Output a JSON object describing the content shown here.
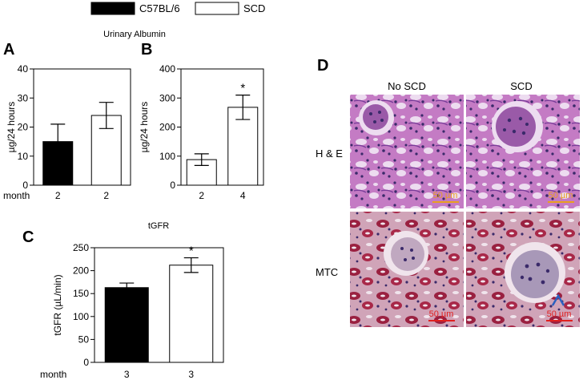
{
  "legend": {
    "items": [
      {
        "label": "C57BL/6",
        "color": "#000000"
      },
      {
        "label": "SCD",
        "color": "#ffffff"
      }
    ],
    "placement": "top"
  },
  "panels": {
    "A": "A",
    "B": "B",
    "C": "C",
    "D": "D"
  },
  "chart_data": [
    {
      "panel": "A",
      "type": "bar",
      "title": "Urinary Albumin",
      "ylabel": "µg/24 hours",
      "xlabel": "month",
      "categories": [
        "2",
        "2"
      ],
      "values": [
        15,
        24
      ],
      "errors": [
        6,
        4.5
      ],
      "fills": [
        "#000000",
        "#ffffff"
      ],
      "ylim": [
        0,
        40
      ],
      "yticks": [
        0,
        10,
        20,
        30,
        40
      ],
      "significance": [
        "",
        ""
      ],
      "grid": false
    },
    {
      "panel": "B",
      "type": "bar",
      "title": "",
      "ylabel": "µg/24 hours",
      "xlabel": "",
      "categories": [
        "2",
        "4"
      ],
      "values": [
        88,
        268
      ],
      "errors": [
        20,
        42
      ],
      "fills": [
        "#ffffff",
        "#ffffff"
      ],
      "ylim": [
        0,
        400
      ],
      "yticks": [
        0,
        100,
        200,
        300,
        400
      ],
      "significance": [
        "",
        "*"
      ],
      "grid": false
    },
    {
      "panel": "C",
      "type": "bar",
      "title": "tGFR",
      "ylabel": "tGFR (µL/min)",
      "xlabel": "month",
      "categories": [
        "3",
        "3"
      ],
      "values": [
        163,
        212
      ],
      "errors": [
        10,
        16
      ],
      "fills": [
        "#000000",
        "#ffffff"
      ],
      "ylim": [
        0,
        250
      ],
      "yticks": [
        0,
        50,
        100,
        150,
        200,
        250
      ],
      "significance": [
        "",
        "*"
      ],
      "grid": false
    }
  ],
  "histology": {
    "columns": [
      "No SCD",
      "SCD"
    ],
    "rows": [
      "H & E",
      "MTC"
    ],
    "scale_bars": [
      "50 µm",
      "50 µm",
      "50 µm",
      "50 µm"
    ],
    "scale_colors": [
      "#e8a020",
      "#e8a020",
      "#e02020",
      "#e02020"
    ],
    "tile_colors": {
      "he_base": "#c47bc4",
      "he_dark": "#7a3d9a",
      "he_light": "#eddcf0",
      "mtc_base": "#c890a8",
      "mtc_dark": "#9a2040",
      "mtc_light": "#f0e4ec",
      "nuclei": "#3a2a6a"
    }
  }
}
